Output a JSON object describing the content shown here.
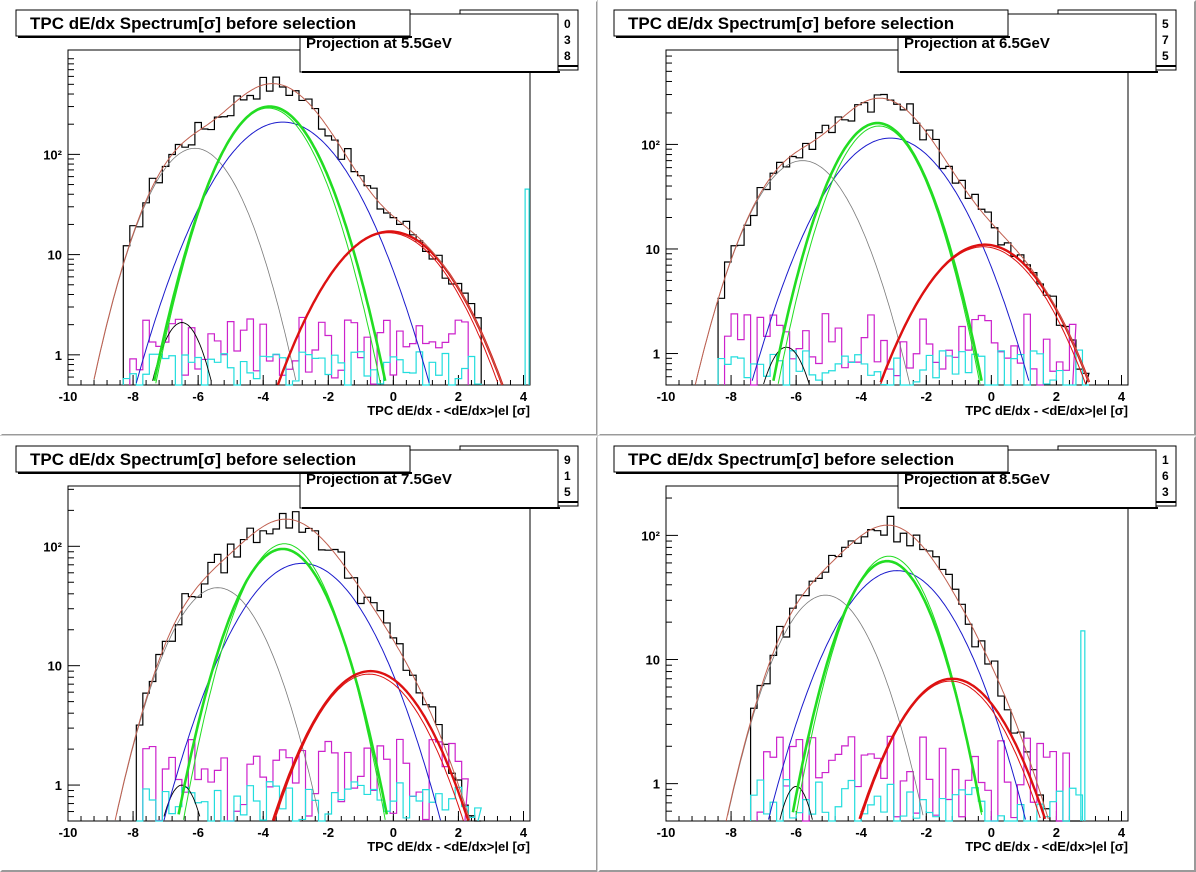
{
  "colors": {
    "data_hist": "#000000",
    "total_fit": "#c06050",
    "kaon_fit": "#7a7a7a",
    "low_fit": "#000000",
    "pion_fit": "#1a1acc",
    "proton_fit": "#22dd22",
    "electron_fit": "#dd1111",
    "cyan_hist": "#22dddd",
    "magenta_hist": "#cc22cc"
  },
  "chart_data": [
    {
      "type": "line",
      "title": "TPC dE/dx Spectrum[σ] before selection",
      "projection_label": "Projection at 5.5GeV",
      "stat_digits": [
        "0",
        "3",
        "8"
      ],
      "xlabel": "TPC dE/dx - <dE/dx>|el [σ]",
      "xlim": [
        -10,
        4.2
      ],
      "ylim_log": [
        0.5,
        1100
      ],
      "y_scale": "log",
      "x_ticks": [
        "-10",
        "-8",
        "-6",
        "-4",
        "-2",
        "0",
        "2",
        "4"
      ],
      "y_ticks": [
        "1",
        "10",
        "10²"
      ],
      "series": [
        {
          "key": "low",
          "mu": -6.5,
          "sigma": 0.55,
          "amp": 2.1
        },
        {
          "key": "kaon",
          "mu": -6.1,
          "sigma": 0.95,
          "amp": 115
        },
        {
          "key": "proton",
          "mu": -3.8,
          "sigma": 1.0,
          "amp": 300
        },
        {
          "key": "proton2",
          "mu": -3.85,
          "sigma": 0.97,
          "amp": 290
        },
        {
          "key": "pion",
          "mu": -3.4,
          "sigma": 1.3,
          "amp": 210
        },
        {
          "key": "electron",
          "mu": -0.1,
          "sigma": 1.3,
          "amp": 17
        },
        {
          "key": "electron2",
          "mu": -0.15,
          "sigma": 1.28,
          "amp": 16.5
        }
      ],
      "cyan_spike": {
        "x": 4.05,
        "value": 45
      },
      "hist_range": [
        -8.3,
        2.7
      ]
    },
    {
      "type": "line",
      "title": "TPC dE/dx Spectrum[σ] before selection",
      "projection_label": "Projection at 6.5GeV",
      "stat_digits": [
        "5",
        "7",
        "5"
      ],
      "xlabel": "TPC dE/dx - <dE/dx>|el [σ]",
      "xlim": [
        -10,
        4.2
      ],
      "ylim_log": [
        0.5,
        800
      ],
      "y_scale": "log",
      "x_ticks": [
        "-10",
        "-8",
        "-6",
        "-4",
        "-2",
        "0",
        "2",
        "4"
      ],
      "y_ticks": [
        "1",
        "10",
        "10²"
      ],
      "series": [
        {
          "key": "low",
          "mu": -6.3,
          "sigma": 0.55,
          "amp": 1.15
        },
        {
          "key": "kaon",
          "mu": -5.8,
          "sigma": 1.05,
          "amp": 70
        },
        {
          "key": "proton",
          "mu": -3.5,
          "sigma": 0.95,
          "amp": 160
        },
        {
          "key": "proton2",
          "mu": -3.45,
          "sigma": 0.92,
          "amp": 150
        },
        {
          "key": "pion",
          "mu": -3.1,
          "sigma": 1.3,
          "amp": 115
        },
        {
          "key": "electron",
          "mu": -0.2,
          "sigma": 1.3,
          "amp": 11
        },
        {
          "key": "electron2",
          "mu": -0.25,
          "sigma": 1.28,
          "amp": 10.5
        }
      ],
      "cyan_spike": null,
      "hist_range": [
        -8.4,
        2.9
      ]
    },
    {
      "type": "line",
      "title": "TPC dE/dx Spectrum[σ] before selection",
      "projection_label": "Projection at 7.5GeV",
      "stat_digits": [
        "9",
        "1",
        "5"
      ],
      "xlabel": "TPC dE/dx - <dE/dx>|el [σ]",
      "xlim": [
        -10,
        4.2
      ],
      "ylim_log": [
        0.5,
        320
      ],
      "y_scale": "log",
      "x_ticks": [
        "-10",
        "-8",
        "-6",
        "-4",
        "-2",
        "0",
        "2",
        "4"
      ],
      "y_ticks": [
        "1",
        "10",
        "10²"
      ],
      "series": [
        {
          "key": "low",
          "mu": -6.5,
          "sigma": 0.5,
          "amp": 1.0
        },
        {
          "key": "kaon",
          "mu": -5.4,
          "sigma": 1.05,
          "amp": 45
        },
        {
          "key": "proton",
          "mu": -3.4,
          "sigma": 1.0,
          "amp": 95
        },
        {
          "key": "proton2",
          "mu": -3.35,
          "sigma": 0.95,
          "amp": 105
        },
        {
          "key": "pion",
          "mu": -2.8,
          "sigma": 1.35,
          "amp": 72
        },
        {
          "key": "electron",
          "mu": -0.7,
          "sigma": 1.25,
          "amp": 9
        },
        {
          "key": "electron2",
          "mu": -0.75,
          "sigma": 1.22,
          "amp": 8.5
        }
      ],
      "cyan_spike": null,
      "hist_range": [
        -7.9,
        2.6
      ]
    },
    {
      "type": "line",
      "title": "TPC dE/dx Spectrum[σ] before selection",
      "projection_label": "Projection at 8.5GeV",
      "stat_digits": [
        "1",
        "6",
        "3"
      ],
      "xlabel": "TPC dE/dx - <dE/dx>|el [σ]",
      "xlim": [
        -10,
        4.2
      ],
      "ylim_log": [
        0.5,
        250
      ],
      "y_scale": "log",
      "x_ticks": [
        "-10",
        "-8",
        "-6",
        "-4",
        "-2",
        "0",
        "2",
        "4"
      ],
      "y_ticks": [
        "1",
        "10",
        "10²"
      ],
      "series": [
        {
          "key": "low",
          "mu": -6.0,
          "sigma": 0.45,
          "amp": 0.95
        },
        {
          "key": "kaon",
          "mu": -5.1,
          "sigma": 1.05,
          "amp": 33
        },
        {
          "key": "proton",
          "mu": -3.2,
          "sigma": 0.95,
          "amp": 62
        },
        {
          "key": "proton2",
          "mu": -3.15,
          "sigma": 0.92,
          "amp": 68
        },
        {
          "key": "pion",
          "mu": -2.9,
          "sigma": 1.3,
          "amp": 52
        },
        {
          "key": "electron",
          "mu": -1.2,
          "sigma": 1.25,
          "amp": 7
        },
        {
          "key": "electron2",
          "mu": -1.25,
          "sigma": 1.22,
          "amp": 6.7
        }
      ],
      "cyan_spike": {
        "x": 2.75,
        "value": 17
      },
      "hist_range": [
        -7.4,
        2.8
      ]
    }
  ]
}
